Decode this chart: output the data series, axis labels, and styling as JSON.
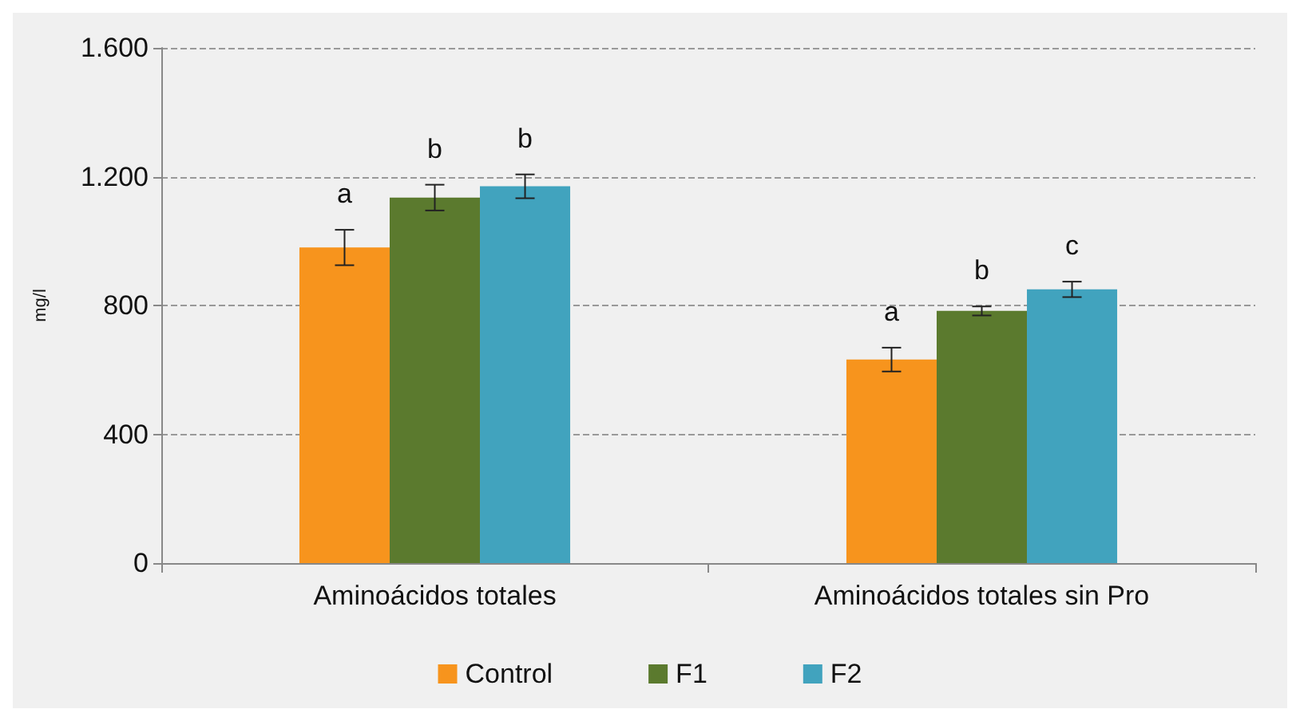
{
  "chart_data": {
    "type": "bar",
    "ylabel": "mg/l",
    "categories": [
      "Aminoácidos totales",
      "Aminoácidos totales sin Pro"
    ],
    "series": [
      {
        "name": "Control",
        "color": "#f7941d",
        "values": [
          980,
          632
        ],
        "errors": [
          55,
          37
        ],
        "value_labels": [
          "a",
          "a"
        ]
      },
      {
        "name": "F1",
        "color": "#5b7a2e",
        "values": [
          1135,
          783
        ],
        "errors": [
          40,
          14
        ],
        "value_labels": [
          "b",
          "b"
        ]
      },
      {
        "name": "F2",
        "color": "#41a3be",
        "values": [
          1170,
          850
        ],
        "errors": [
          37,
          24
        ],
        "value_labels": [
          "b",
          "c"
        ]
      }
    ],
    "ylim": [
      0,
      1600
    ],
    "yticks": [
      0,
      {
        "value": 400,
        "label": "400"
      },
      {
        "value": 800,
        "label": "800"
      },
      {
        "value": 1200,
        "label": "1.200"
      },
      {
        "value": 1600,
        "label": "1.600"
      }
    ],
    "grid": "y",
    "legend": "bottom"
  }
}
